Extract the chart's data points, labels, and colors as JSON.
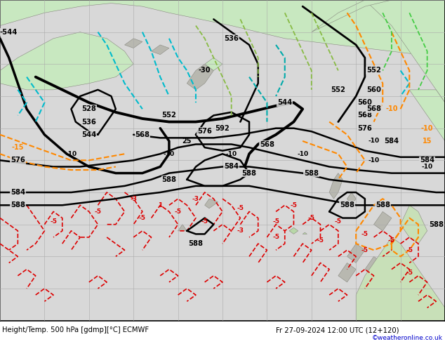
{
  "title_left": "Height/Temp. 500 hPa [gdmp][°C] ECMWF",
  "title_right": "Fr 27-09-2024 12:00 UTC (12+120)",
  "copyright": "©weatheronline.co.uk",
  "bg_color": "#d8d8d8",
  "sea_color": "#d8d8d8",
  "land_color": "#c8e8c0",
  "grid_color": "#aaaaaa",
  "title_bg": "#c0c0c0",
  "title_font_color": "#000000",
  "copyright_color": "#0000cc",
  "figsize": [
    6.34,
    4.9
  ],
  "dpi": 100,
  "contour_lw": 1.8,
  "contour_lw_thick": 2.5
}
